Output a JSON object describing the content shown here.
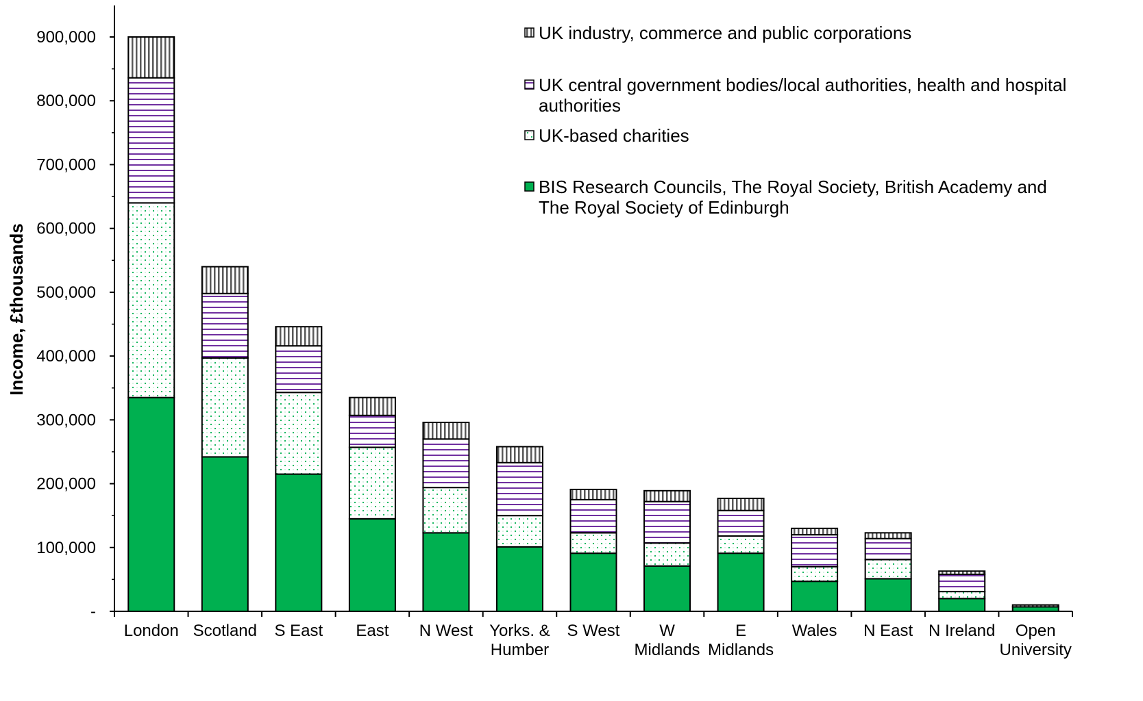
{
  "chart_data": {
    "type": "bar",
    "stacked": true,
    "ylabel": "Income, £thousands",
    "ylim": [
      0,
      900000
    ],
    "yticks": [
      0,
      100000,
      200000,
      300000,
      400000,
      500000,
      600000,
      700000,
      800000,
      900000
    ],
    "ytick_labels": [
      "-",
      "100,000",
      "200,000",
      "300,000",
      "400,000",
      "500,000",
      "600,000",
      "700,000",
      "800,000",
      "900,000"
    ],
    "legend_position": "top-right",
    "categories": [
      [
        "London"
      ],
      [
        "Scotland"
      ],
      [
        "S East"
      ],
      [
        "East"
      ],
      [
        "N West"
      ],
      [
        "Yorks. &",
        "Humber"
      ],
      [
        "S West"
      ],
      [
        "W",
        "Midlands"
      ],
      [
        "E",
        "Midlands"
      ],
      [
        "Wales"
      ],
      [
        "N East"
      ],
      [
        "N Ireland"
      ],
      [
        "Open",
        "University"
      ]
    ],
    "series": [
      {
        "name_lines": [
          "BIS Research Councils, The Royal Society, British Academy and",
          "The Royal Society of Edinburgh"
        ],
        "pattern": "solid",
        "color": "#00b050",
        "values": [
          335000,
          242000,
          215000,
          145000,
          123000,
          101000,
          91000,
          71000,
          91000,
          47000,
          51000,
          20000,
          7000
        ]
      },
      {
        "name_lines": [
          "UK-based charities"
        ],
        "pattern": "dots",
        "color": "#00b050",
        "values": [
          305000,
          155000,
          128000,
          112000,
          71000,
          49000,
          32000,
          36000,
          27000,
          23000,
          30000,
          11000,
          0
        ]
      },
      {
        "name_lines": [
          "UK central government bodies/local authorities, health and hospital",
          "authorities"
        ],
        "pattern": "hlines",
        "color": "#7030a0",
        "values": [
          196000,
          101000,
          73000,
          50000,
          76000,
          83000,
          52000,
          65000,
          40000,
          50000,
          33000,
          27000,
          0
        ]
      },
      {
        "name_lines": [
          "UK industry, commerce and public corporations"
        ],
        "pattern": "vlines",
        "color": "#808080",
        "values": [
          64000,
          42000,
          30000,
          28000,
          26000,
          25000,
          16000,
          17000,
          19000,
          10000,
          9000,
          5000,
          3000
        ]
      }
    ]
  }
}
